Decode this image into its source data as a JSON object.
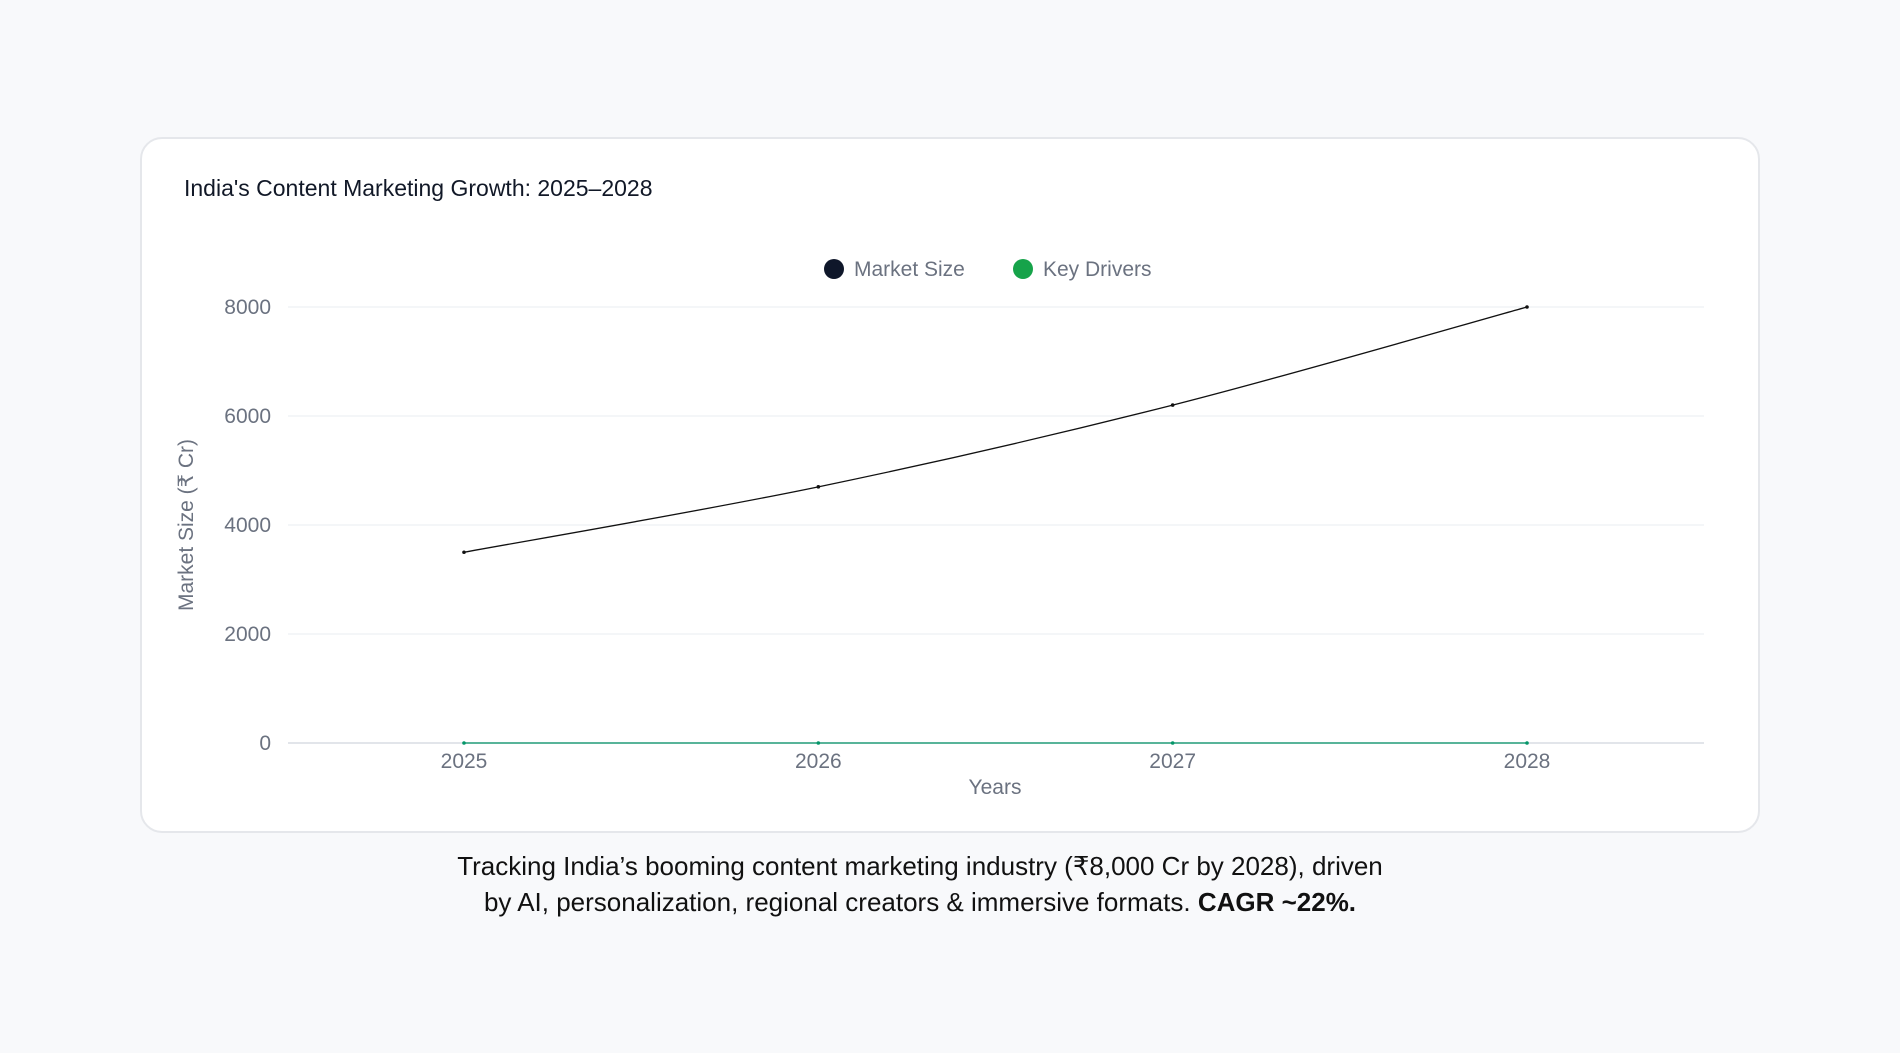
{
  "card": {
    "title": "India's Content Marketing Growth: 2025–2028"
  },
  "caption": {
    "line1": "Tracking India’s booming content marketing industry (₹8,000 Cr by 2028), driven",
    "line2": "by AI, personalization, regional creators & immersive formats.",
    "emphasis": "CAGR ~22%."
  },
  "colors": {
    "market_size": "#111111",
    "market_size_legend": "#0f172a",
    "key_drivers": "#059669",
    "key_drivers_legend": "#16a34a",
    "grid": "#eef0f3",
    "background": "#f8f9fb"
  },
  "chart_data": {
    "type": "line",
    "title": "India's Content Marketing Growth: 2025–2028",
    "xlabel": "Years",
    "ylabel": "Market Size (₹ Cr)",
    "categories": [
      "2025",
      "2026",
      "2027",
      "2028"
    ],
    "ylim": [
      0,
      8000
    ],
    "yticks": [
      "0",
      "2000",
      "4000",
      "6000",
      "8000"
    ],
    "legend_position": "top-center",
    "grid": true,
    "series": [
      {
        "name": "Market Size",
        "values": [
          3500,
          4700,
          6200,
          8000
        ]
      },
      {
        "name": "Key Drivers",
        "values": [
          0,
          0,
          0,
          0
        ]
      }
    ]
  }
}
